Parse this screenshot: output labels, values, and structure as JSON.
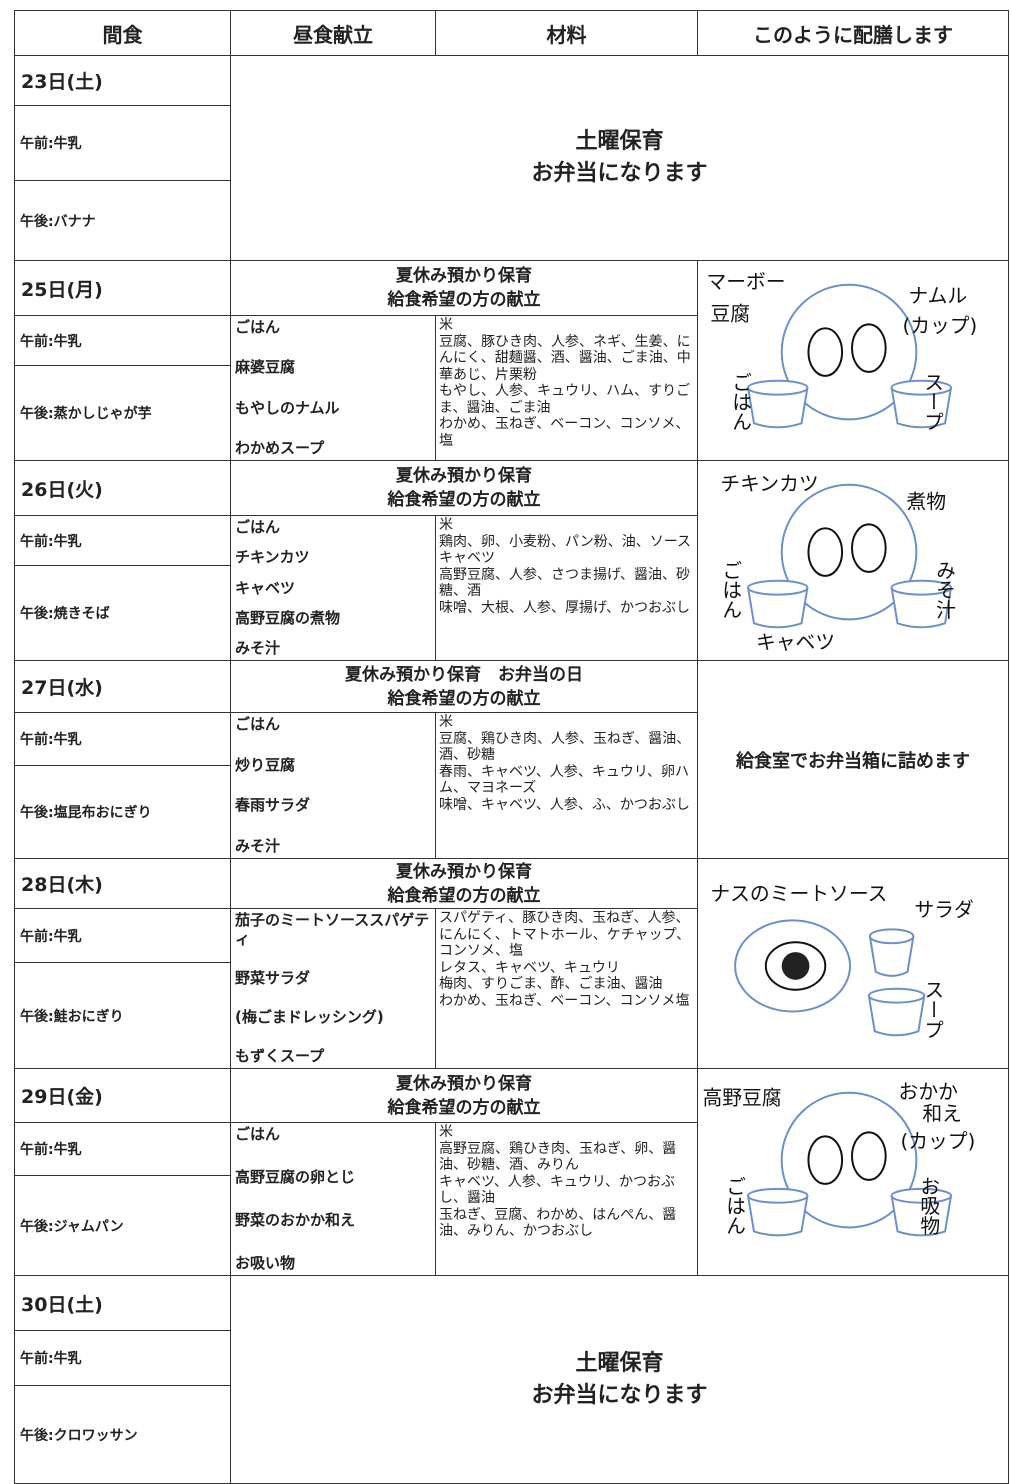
{
  "header": [
    "間食",
    "昼食献立",
    "材料",
    "このように配膳します"
  ],
  "days": [
    {
      "date": "23日(土)",
      "snack_am": "午前:牛乳",
      "snack_pm": "午後:バナナ",
      "notice": [
        "土曜保育",
        "お弁当になります"
      ]
    },
    {
      "date": "25日(月)",
      "snack_am": "午前:牛乳",
      "snack_pm": "午後:蒸かしじゃが芋",
      "heading": [
        "夏休み預かり保育",
        "給食希望の方の献立"
      ],
      "menu": [
        "ごはん",
        "麻婆豆腐",
        "もやしのナムル",
        "わかめスープ"
      ],
      "ingredients": [
        "米",
        "豆腐、豚ひき肉、人参、ネギ、生姜、にんにく、甜麺醤、酒、醤油、ごま油、中華あじ、片栗粉",
        "もやし、人参、キュウリ、ハム、すりごま、醤油、ごま油",
        "わかめ、玉ねぎ、ベーコン、コンソメ、塩"
      ],
      "drawing_labels": [
        "マーボー",
        "豆腐",
        "ナムル",
        "(カップ)",
        "ごはん",
        "スープ"
      ]
    },
    {
      "date": "26日(火)",
      "snack_am": "午前:牛乳",
      "snack_pm": "午後:焼きそば",
      "heading": [
        "夏休み預かり保育",
        "給食希望の方の献立"
      ],
      "menu": [
        "ごはん",
        "チキンカツ",
        "キャベツ",
        "高野豆腐の煮物",
        "みそ汁"
      ],
      "ingredients": [
        "米",
        "鶏肉、卵、小麦粉、パン粉、油、ソース",
        "キャベツ",
        "高野豆腐、人参、さつま揚げ、醤油、砂糖、酒",
        "味噌、大根、人参、厚揚げ、かつおぶし"
      ],
      "drawing_labels": [
        "チキンカツ",
        "煮物",
        "ごはん",
        "みそ汁",
        "キャベツ"
      ]
    },
    {
      "date": "27日(水)",
      "snack_am": "午前:牛乳",
      "snack_pm": "午後:塩昆布おにぎり",
      "heading": [
        "夏休み預かり保育　お弁当の日",
        "給食希望の方の献立"
      ],
      "menu": [
        "ごはん",
        "炒り豆腐",
        "春雨サラダ",
        "みそ汁"
      ],
      "ingredients": [
        "米",
        "豆腐、鶏ひき肉、人参、玉ねぎ、醤油、酒、砂糖",
        "春雨、キャベツ、人参、キュウリ、卵ハム、マヨネーズ",
        "味噌、キャベツ、人参、ふ、かつおぶし"
      ],
      "serving_note": "給食室でお弁当箱に詰めます"
    },
    {
      "date": "28日(木)",
      "snack_am": "午前:牛乳",
      "snack_pm": "午後:鮭おにぎり",
      "heading": [
        "夏休み預かり保育",
        "給食希望の方の献立"
      ],
      "menu": [
        "茄子のミートソーススパゲティ",
        "野菜サラダ",
        "(梅ごまドレッシング)",
        "もずくスープ"
      ],
      "ingredients": [
        "スパゲティ、豚ひき肉、玉ねぎ、人参、にんにく、トマトホール、ケチャップ、コンソメ、塩",
        "レタス、キャベツ、キュウリ",
        "梅肉、すりごま、酢、ごま油、醤油",
        "わかめ、玉ねぎ、ベーコン、コンソメ塩"
      ],
      "drawing_labels": [
        "ナスのミートソース",
        "サラダ",
        "スープ"
      ]
    },
    {
      "date": "29日(金)",
      "snack_am": "午前:牛乳",
      "snack_pm": "午後:ジャムパン",
      "heading": [
        "夏休み預かり保育",
        "給食希望の方の献立"
      ],
      "menu": [
        "ごはん",
        "高野豆腐の卵とじ",
        "野菜のおかか和え",
        "お吸い物"
      ],
      "ingredients": [
        "米",
        "高野豆腐、鶏ひき肉、玉ねぎ、卵、醤油、砂糖、酒、みりん",
        "キャベツ、人参、キュウリ、かつおぶし、醤油",
        "玉ねぎ、豆腐、わかめ、はんぺん、醤油、みりん、かつおぶし"
      ],
      "drawing_labels": [
        "高野豆腐",
        "おかか",
        "和え",
        "(カップ)",
        "ごはん",
        "お吸物"
      ]
    },
    {
      "date": "30日(土)",
      "snack_am": "午前:牛乳",
      "snack_pm": "午後:クロワッサン",
      "notice": [
        "土曜保育",
        "お弁当になります"
      ]
    }
  ]
}
